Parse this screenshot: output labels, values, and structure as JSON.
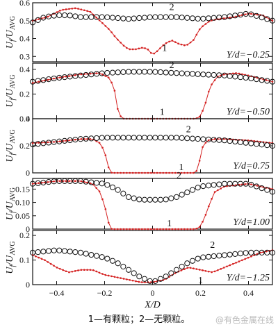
{
  "figure": {
    "caption": "1—有颗粒；2—无颗粒。",
    "watermark": "@有色金属在线",
    "xlabel": "X/D",
    "ylabel_main": "U",
    "ylabel_sub1": "f",
    "ylabel_div": "/U",
    "ylabel_sub2": "AVG",
    "colors": {
      "curve1": "#d42020",
      "curve2": "#111111",
      "axis": "#111111"
    }
  },
  "chart_data": [
    {
      "type": "line",
      "label": "Y/d=−0.25",
      "xlim": [
        -0.5,
        0.5
      ],
      "ylim": [
        0.27,
        0.6
      ],
      "yticks": [
        0.3,
        0.4,
        0.5,
        0.6
      ],
      "ytick_labels": [
        "0.3",
        "0.4",
        "0.5",
        "0.6"
      ],
      "series": [
        {
          "name": "1",
          "x": [
            -0.5,
            -0.44,
            -0.38,
            -0.32,
            -0.26,
            -0.22,
            -0.18,
            -0.15,
            -0.12,
            -0.1,
            -0.07,
            -0.04,
            -0.02,
            0.0,
            0.02,
            0.05,
            0.08,
            0.11,
            0.14,
            0.17,
            0.2,
            0.24,
            0.28,
            0.34,
            0.4,
            0.46,
            0.5
          ],
          "y": [
            0.5,
            0.52,
            0.56,
            0.57,
            0.55,
            0.5,
            0.45,
            0.4,
            0.36,
            0.34,
            0.34,
            0.35,
            0.34,
            0.31,
            0.33,
            0.37,
            0.39,
            0.37,
            0.36,
            0.39,
            0.46,
            0.5,
            0.51,
            0.52,
            0.54,
            0.53,
            0.5
          ]
        },
        {
          "name": "2",
          "x": [
            -0.5,
            -0.45,
            -0.4,
            -0.35,
            -0.3,
            -0.2,
            -0.1,
            0.0,
            0.1,
            0.2,
            0.3,
            0.35,
            0.4,
            0.45,
            0.5
          ],
          "y": [
            0.49,
            0.52,
            0.53,
            0.53,
            0.52,
            0.52,
            0.51,
            0.52,
            0.52,
            0.51,
            0.52,
            0.53,
            0.54,
            0.52,
            0.5
          ]
        }
      ],
      "curve_labels": [
        "1",
        "2"
      ]
    },
    {
      "type": "line",
      "label": "Y/d=−0.50",
      "xlim": [
        -0.5,
        0.5
      ],
      "ylim": [
        0,
        0.45
      ],
      "yticks": [
        0,
        0.2,
        0.4
      ],
      "ytick_labels": [
        "0",
        "0.2",
        "0.4"
      ],
      "series": [
        {
          "name": "1",
          "x": [
            -0.5,
            -0.4,
            -0.3,
            -0.22,
            -0.18,
            -0.16,
            -0.15,
            -0.14,
            -0.12,
            -0.1,
            0.0,
            0.1,
            0.18,
            0.2,
            0.22,
            0.24,
            0.27,
            0.3,
            0.35,
            0.4,
            0.5
          ],
          "y": [
            0.29,
            0.33,
            0.36,
            0.37,
            0.33,
            0.25,
            0.12,
            0.03,
            0.0,
            0.0,
            0.0,
            0.0,
            0.0,
            0.02,
            0.12,
            0.26,
            0.34,
            0.36,
            0.37,
            0.35,
            0.3
          ]
        },
        {
          "name": "2",
          "x": [
            -0.5,
            -0.4,
            -0.3,
            -0.2,
            -0.1,
            0.0,
            0.1,
            0.2,
            0.3,
            0.4,
            0.5
          ],
          "y": [
            0.3,
            0.33,
            0.35,
            0.37,
            0.38,
            0.38,
            0.37,
            0.36,
            0.35,
            0.33,
            0.3
          ]
        }
      ],
      "curve_labels": [
        "1",
        "2"
      ]
    },
    {
      "type": "line",
      "label": "Y/d=0.75",
      "xlim": [
        -0.5,
        0.5
      ],
      "ylim": [
        0,
        0.4
      ],
      "yticks": [
        0,
        0.2,
        0.4
      ],
      "ytick_labels": [
        "0",
        "0.2",
        "0.4"
      ],
      "series": [
        {
          "name": "1",
          "x": [
            -0.5,
            -0.4,
            -0.3,
            -0.25,
            -0.22,
            -0.2,
            -0.19,
            -0.18,
            -0.17,
            -0.1,
            0.0,
            0.1,
            0.18,
            0.19,
            0.2,
            0.21,
            0.23,
            0.26,
            0.3,
            0.4,
            0.5
          ],
          "y": [
            0.22,
            0.23,
            0.25,
            0.25,
            0.22,
            0.16,
            0.08,
            0.02,
            0.0,
            0.0,
            0.0,
            0.0,
            0.0,
            0.04,
            0.12,
            0.2,
            0.24,
            0.25,
            0.25,
            0.24,
            0.22
          ]
        },
        {
          "name": "2",
          "x": [
            -0.5,
            -0.4,
            -0.3,
            -0.2,
            -0.1,
            0.0,
            0.1,
            0.2,
            0.3,
            0.4,
            0.5
          ],
          "y": [
            0.21,
            0.23,
            0.25,
            0.26,
            0.26,
            0.26,
            0.26,
            0.25,
            0.24,
            0.22,
            0.2
          ]
        }
      ],
      "curve_labels": [
        "1",
        "2"
      ]
    },
    {
      "type": "line",
      "label": "Y/d=1.00",
      "xlim": [
        -0.5,
        0.5
      ],
      "ylim": [
        0,
        0.19
      ],
      "yticks": [
        0,
        0.05,
        0.1,
        0.15
      ],
      "ytick_labels": [
        "0",
        "0.05",
        "0.10",
        "0.15"
      ],
      "series": [
        {
          "name": "1",
          "x": [
            -0.5,
            -0.4,
            -0.3,
            -0.25,
            -0.22,
            -0.2,
            -0.19,
            -0.18,
            -0.17,
            -0.1,
            0.0,
            0.1,
            0.18,
            0.2,
            0.22,
            0.24,
            0.26,
            0.3,
            0.4,
            0.5
          ],
          "y": [
            0.17,
            0.18,
            0.18,
            0.17,
            0.14,
            0.09,
            0.05,
            0.01,
            0.0,
            0.0,
            0.0,
            0.0,
            0.0,
            0.01,
            0.05,
            0.1,
            0.14,
            0.16,
            0.17,
            0.15
          ]
        },
        {
          "name": "2",
          "x": [
            -0.5,
            -0.4,
            -0.3,
            -0.2,
            -0.15,
            -0.1,
            -0.05,
            0.0,
            0.05,
            0.1,
            0.15,
            0.2,
            0.3,
            0.4,
            0.5
          ],
          "y": [
            0.17,
            0.18,
            0.18,
            0.17,
            0.15,
            0.12,
            0.11,
            0.11,
            0.11,
            0.12,
            0.14,
            0.16,
            0.17,
            0.17,
            0.14
          ]
        }
      ],
      "curve_labels": [
        "1",
        "2"
      ]
    },
    {
      "type": "line",
      "label": "Y/d=−1.25",
      "xlim": [
        -0.5,
        0.5
      ],
      "ylim": [
        0,
        0.22
      ],
      "yticks": [
        0,
        0.1,
        0.2
      ],
      "ytick_labels": [
        "0",
        "0.1",
        "0.2"
      ],
      "xticks": [
        -0.4,
        -0.2,
        0,
        0.2,
        0.4
      ],
      "xtick_labels": [
        "−0.4",
        "−0.2",
        "0",
        "0.2",
        "0.4"
      ],
      "series": [
        {
          "name": "1",
          "x": [
            -0.5,
            -0.45,
            -0.4,
            -0.35,
            -0.3,
            -0.25,
            -0.2,
            -0.15,
            -0.1,
            -0.05,
            0.0,
            0.05,
            0.1,
            0.15,
            0.2,
            0.25,
            0.3,
            0.35,
            0.4,
            0.45,
            0.5
          ],
          "y": [
            0.12,
            0.1,
            0.07,
            0.05,
            0.06,
            0.06,
            0.04,
            0.03,
            0.02,
            0.01,
            0.01,
            0.02,
            0.05,
            0.07,
            0.06,
            0.05,
            0.07,
            0.09,
            0.11,
            0.13,
            0.14
          ]
        },
        {
          "name": "2",
          "x": [
            -0.5,
            -0.4,
            -0.3,
            -0.2,
            -0.15,
            -0.1,
            -0.05,
            0.0,
            0.05,
            0.1,
            0.15,
            0.2,
            0.3,
            0.4,
            0.5
          ],
          "y": [
            0.13,
            0.14,
            0.13,
            0.11,
            0.09,
            0.06,
            0.03,
            0.01,
            0.03,
            0.06,
            0.09,
            0.11,
            0.12,
            0.13,
            0.13
          ]
        }
      ],
      "curve_labels": [
        "1",
        "2"
      ]
    }
  ]
}
